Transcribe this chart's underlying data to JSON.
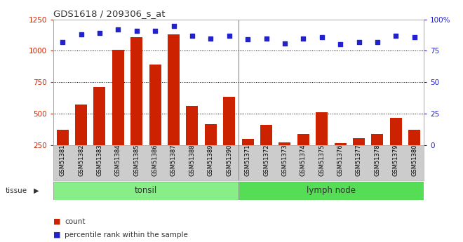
{
  "title": "GDS1618 / 209306_s_at",
  "samples": [
    "GSM51381",
    "GSM51382",
    "GSM51383",
    "GSM51384",
    "GSM51385",
    "GSM51386",
    "GSM51387",
    "GSM51388",
    "GSM51389",
    "GSM51390",
    "GSM51371",
    "GSM51372",
    "GSM51373",
    "GSM51374",
    "GSM51375",
    "GSM51376",
    "GSM51377",
    "GSM51378",
    "GSM51379",
    "GSM51380"
  ],
  "counts": [
    375,
    575,
    710,
    1010,
    1110,
    890,
    1130,
    560,
    415,
    635,
    300,
    410,
    275,
    340,
    510,
    265,
    305,
    340,
    465,
    370
  ],
  "percentiles": [
    82,
    88,
    89,
    92,
    91,
    91,
    95,
    87,
    85,
    87,
    84,
    85,
    81,
    85,
    86,
    80,
    82,
    82,
    87,
    86
  ],
  "tonsil_count": 10,
  "lymph_count": 10,
  "ylim_left": [
    250,
    1250
  ],
  "ylim_right": [
    0,
    100
  ],
  "yticks_left": [
    250,
    500,
    750,
    1000,
    1250
  ],
  "yticks_right": [
    0,
    25,
    50,
    75,
    100
  ],
  "bar_color": "#cc2200",
  "dot_color": "#2222cc",
  "tonsil_color": "#88ee88",
  "lymph_color": "#55dd55",
  "tissue_label": "tissue",
  "tonsil_label": "tonsil",
  "lymph_label": "lymph node",
  "legend_count": "count",
  "legend_pct": "percentile rank within the sample",
  "grid_color": "#000000"
}
